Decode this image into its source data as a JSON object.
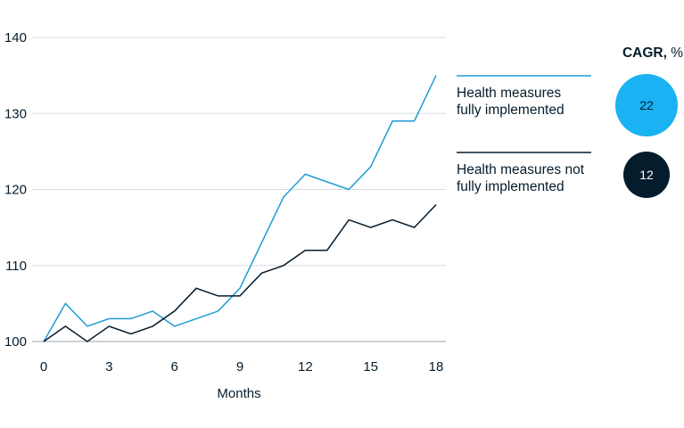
{
  "chart_data": {
    "type": "line",
    "x": [
      0,
      1,
      2,
      3,
      4,
      5,
      6,
      7,
      8,
      9,
      10,
      11,
      12,
      13,
      14,
      15,
      16,
      17,
      18
    ],
    "xticks": [
      "0",
      "3",
      "6",
      "9",
      "12",
      "15",
      "18"
    ],
    "xtick_values": [
      0,
      3,
      6,
      9,
      12,
      15,
      18
    ],
    "yticks": [
      "100",
      "110",
      "120",
      "130",
      "140"
    ],
    "ytick_values": [
      100,
      110,
      120,
      130,
      140
    ],
    "xlim": [
      0,
      18
    ],
    "ylim": [
      100,
      140
    ],
    "xlabel": "Months",
    "ylabel": "",
    "title": "",
    "grid": "horizontal",
    "legend_placement": "right",
    "series": [
      {
        "name": "Health measures fully implemented",
        "name_lines": [
          "Health measures",
          "fully implemented"
        ],
        "color": "#1f9bd6",
        "values": [
          100,
          105,
          102,
          103,
          103,
          104,
          102,
          103,
          104,
          107,
          113,
          119,
          122,
          121,
          120,
          123,
          129,
          129,
          135
        ],
        "cagr": "22",
        "bubble_color": "#1ab2f2",
        "bubble_text_color": "#051c2c"
      },
      {
        "name": "Health measures not fully implemented",
        "name_lines": [
          "Health measures not",
          "fully implemented"
        ],
        "color": "#051c2c",
        "values": [
          100,
          102,
          100,
          102,
          101,
          102,
          104,
          107,
          106,
          106,
          109,
          110,
          112,
          112,
          116,
          115,
          116,
          115,
          118
        ],
        "cagr": "12",
        "bubble_color": "#051c2c",
        "bubble_text_color": "#ffffff"
      }
    ],
    "cagr_title": "CAGR, %"
  }
}
